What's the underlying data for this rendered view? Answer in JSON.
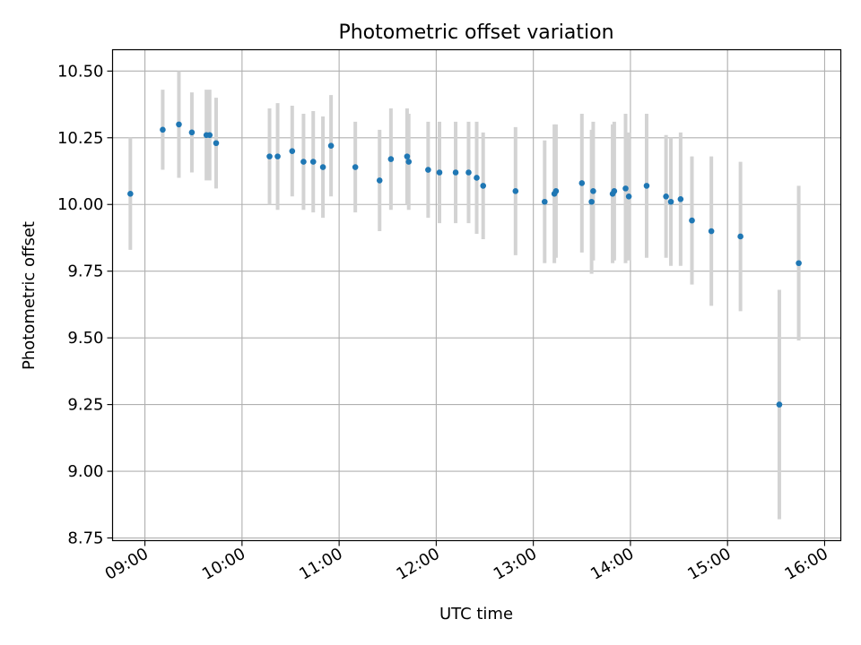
{
  "chart_data": {
    "type": "scatter",
    "title": "Photometric offset variation",
    "xlabel": "UTC time",
    "ylabel": "Photometric offset",
    "grid": true,
    "legend": "none",
    "xlim": [
      "08:40",
      "16:10"
    ],
    "ylim": [
      8.74,
      10.58
    ],
    "xticks": [
      "09:00",
      "10:00",
      "11:00",
      "12:00",
      "13:00",
      "14:00",
      "15:00",
      "16:00"
    ],
    "yticks": [
      "8.75",
      "9.00",
      "9.25",
      "9.50",
      "9.75",
      "10.00",
      "10.25",
      "10.50"
    ],
    "colors": {
      "point": "#1f77b4",
      "errorbar": "#d3d3d3",
      "grid": "#b0b0b0"
    },
    "series": [
      {
        "x": [
          "08:51",
          "09:11",
          "09:21",
          "09:29",
          "09:38",
          "09:40",
          "09:44",
          "10:17",
          "10:22",
          "10:31",
          "10:38",
          "10:44",
          "10:50",
          "10:55",
          "11:10",
          "11:25",
          "11:32",
          "11:42",
          "11:43",
          "11:55",
          "12:02",
          "12:12",
          "12:20",
          "12:25",
          "12:29",
          "12:49",
          "13:07",
          "13:13",
          "13:14",
          "13:30",
          "13:36",
          "13:37",
          "13:49",
          "13:50",
          "13:57",
          "13:59",
          "14:10",
          "14:22",
          "14:25",
          "14:31",
          "14:38",
          "14:50",
          "15:08",
          "15:32",
          "15:44"
        ],
        "y": [
          10.04,
          10.28,
          10.3,
          10.27,
          10.26,
          10.26,
          10.23,
          10.18,
          10.18,
          10.2,
          10.16,
          10.16,
          10.14,
          10.22,
          10.14,
          10.09,
          10.17,
          10.18,
          10.16,
          10.13,
          10.12,
          10.12,
          10.12,
          10.1,
          10.07,
          10.05,
          10.01,
          10.04,
          10.05,
          10.08,
          10.01,
          10.05,
          10.04,
          10.05,
          10.06,
          10.03,
          10.07,
          10.03,
          10.01,
          10.02,
          9.94,
          9.9,
          9.88,
          9.25,
          9.78
        ],
        "yerr": [
          0.21,
          0.15,
          0.2,
          0.15,
          0.17,
          0.17,
          0.17,
          0.18,
          0.2,
          0.17,
          0.18,
          0.19,
          0.19,
          0.19,
          0.17,
          0.19,
          0.19,
          0.18,
          0.18,
          0.18,
          0.19,
          0.19,
          0.19,
          0.21,
          0.2,
          0.24,
          0.23,
          0.26,
          0.25,
          0.26,
          0.27,
          0.26,
          0.26,
          0.26,
          0.28,
          0.24,
          0.27,
          0.23,
          0.24,
          0.25,
          0.24,
          0.28,
          0.28,
          0.43,
          0.29
        ]
      }
    ]
  }
}
